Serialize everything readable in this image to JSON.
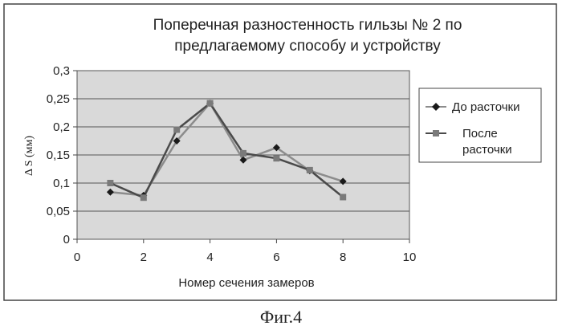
{
  "chart_data": {
    "type": "line",
    "title_lines": [
      "Поперечная разностенность гильзы № 2 по",
      "предлагаемому способу и устройству"
    ],
    "xlabel": "Номер сечения замеров",
    "ylabel": "Δ S (мм)",
    "xlim": [
      0,
      10
    ],
    "ylim": [
      0,
      0.3
    ],
    "x_ticks": [
      0,
      2,
      4,
      6,
      8,
      10
    ],
    "x_tick_labels": [
      "0",
      "2",
      "4",
      "6",
      "8",
      "10"
    ],
    "y_ticks": [
      0,
      0.05,
      0.1,
      0.15,
      0.2,
      0.25,
      0.3
    ],
    "y_tick_labels": [
      "0",
      "0,05",
      "0,1",
      "0,15",
      "0,2",
      "0,25",
      "0,3"
    ],
    "grid": "horizontal",
    "legend_position": "right",
    "series": [
      {
        "name": "До расточки",
        "marker": "diamond",
        "color": "#8c8c8c",
        "marker_color": "#1a1a1a",
        "x": [
          1,
          2,
          3,
          4,
          5,
          6,
          7,
          8
        ],
        "y": [
          0.084,
          0.078,
          0.175,
          0.242,
          0.141,
          0.163,
          0.122,
          0.103
        ]
      },
      {
        "name": "После расточки",
        "name_lines": [
          "После",
          "расточки"
        ],
        "marker": "square",
        "color": "#4a4a4a",
        "marker_color": "#7a7a7a",
        "x": [
          1,
          2,
          3,
          4,
          5,
          6,
          7,
          8
        ],
        "y": [
          0.1,
          0.074,
          0.195,
          0.242,
          0.153,
          0.144,
          0.123,
          0.075
        ]
      }
    ]
  },
  "caption": "Фиг.4"
}
